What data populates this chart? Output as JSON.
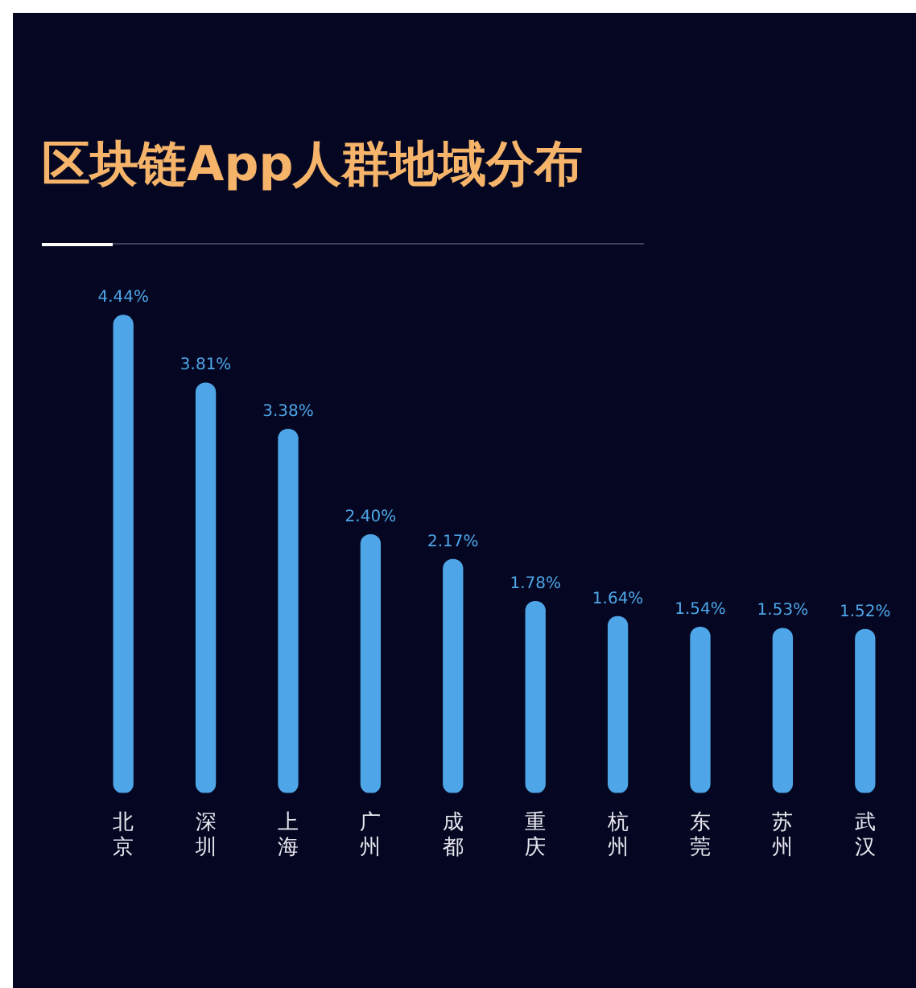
{
  "chart_data": {
    "type": "bar",
    "title": "区块链App人群地域分布",
    "categories": [
      "北京",
      "深圳",
      "上海",
      "广州",
      "成都",
      "重庆",
      "杭州",
      "东莞",
      "苏州",
      "武汉"
    ],
    "values": [
      4.44,
      3.81,
      3.38,
      2.4,
      2.17,
      1.78,
      1.64,
      1.54,
      1.53,
      1.52
    ],
    "value_labels": [
      "4.44%",
      "3.81%",
      "3.38%",
      "2.40%",
      "2.17%",
      "1.78%",
      "1.64%",
      "1.54%",
      "1.53%",
      "1.52%"
    ],
    "color": "#4ea6e8",
    "relative": false,
    "grid": false,
    "legend": false
  }
}
